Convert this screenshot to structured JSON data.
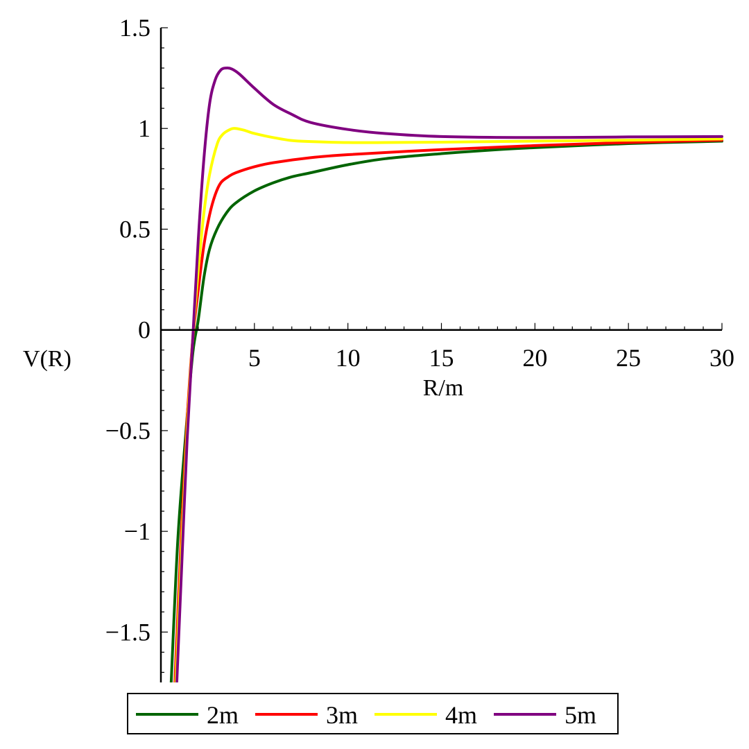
{
  "chart_data": {
    "type": "line",
    "title": "",
    "xlabel": "R/m",
    "ylabel": "V(R)",
    "xlim": [
      0,
      30
    ],
    "ylim": [
      -1.75,
      1.5
    ],
    "x_ticks": [
      5,
      10,
      15,
      20,
      25,
      30
    ],
    "x_tick_labels": [
      "5",
      "10",
      "15",
      "20",
      "25",
      "30"
    ],
    "y_ticks": [
      1.5,
      1,
      0.5,
      0,
      -0.5,
      -1,
      -1.5
    ],
    "y_tick_labels": [
      "1.5",
      "1",
      "0.5",
      "0",
      "−0.5",
      "−1",
      "−1.5"
    ],
    "grid": false,
    "legend_position": "bottom",
    "series": [
      {
        "name": "2m",
        "color": "#006400",
        "x": [
          0.55,
          0.9,
          1.3,
          1.7,
          2.0,
          2.3,
          2.6,
          3.0,
          3.5,
          4.0,
          5.0,
          6.0,
          7.0,
          8.0,
          10.0,
          12.0,
          15.0,
          18.0,
          20.0,
          25.0,
          30.0
        ],
        "values": [
          -1.75,
          -1.05,
          -0.55,
          -0.12,
          0.05,
          0.26,
          0.4,
          0.5,
          0.58,
          0.63,
          0.69,
          0.73,
          0.76,
          0.78,
          0.82,
          0.85,
          0.875,
          0.895,
          0.905,
          0.925,
          0.937
        ]
      },
      {
        "name": "3m",
        "color": "#ff0000",
        "x": [
          0.75,
          1.1,
          1.4,
          1.7,
          2.0,
          2.3,
          2.6,
          2.9,
          3.2,
          3.6,
          4.0,
          5.0,
          6.0,
          8.0,
          10.0,
          15.0,
          20.0,
          25.0,
          30.0
        ],
        "values": [
          -1.75,
          -1.0,
          -0.45,
          -0.05,
          0.2,
          0.42,
          0.57,
          0.67,
          0.73,
          0.76,
          0.78,
          0.81,
          0.83,
          0.855,
          0.87,
          0.895,
          0.915,
          0.93,
          0.942
        ]
      },
      {
        "name": "4m",
        "color": "#ffff00",
        "x": [
          0.8,
          1.1,
          1.4,
          1.7,
          2.0,
          2.3,
          2.6,
          3.0,
          3.3,
          3.7,
          4.0,
          4.5,
          5.0,
          6.0,
          7.0,
          8.0,
          10.0,
          12.0,
          15.0,
          20.0,
          25.0,
          30.0
        ],
        "values": [
          -1.75,
          -1.1,
          -0.5,
          -0.05,
          0.3,
          0.58,
          0.77,
          0.92,
          0.97,
          0.995,
          1.0,
          0.99,
          0.975,
          0.955,
          0.94,
          0.935,
          0.93,
          0.93,
          0.932,
          0.937,
          0.942,
          0.948
        ]
      },
      {
        "name": "5m",
        "color": "#800080",
        "x": [
          0.85,
          1.1,
          1.4,
          1.7,
          2.0,
          2.3,
          2.6,
          2.9,
          3.2,
          3.5,
          3.8,
          4.2,
          5.0,
          6.0,
          7.0,
          8.0,
          10.0,
          12.0,
          15.0,
          20.0,
          25.0,
          30.0
        ],
        "values": [
          -1.75,
          -1.2,
          -0.55,
          -0.05,
          0.45,
          0.85,
          1.12,
          1.24,
          1.29,
          1.3,
          1.295,
          1.27,
          1.2,
          1.12,
          1.07,
          1.03,
          0.995,
          0.975,
          0.96,
          0.955,
          0.958,
          0.96
        ]
      }
    ]
  }
}
